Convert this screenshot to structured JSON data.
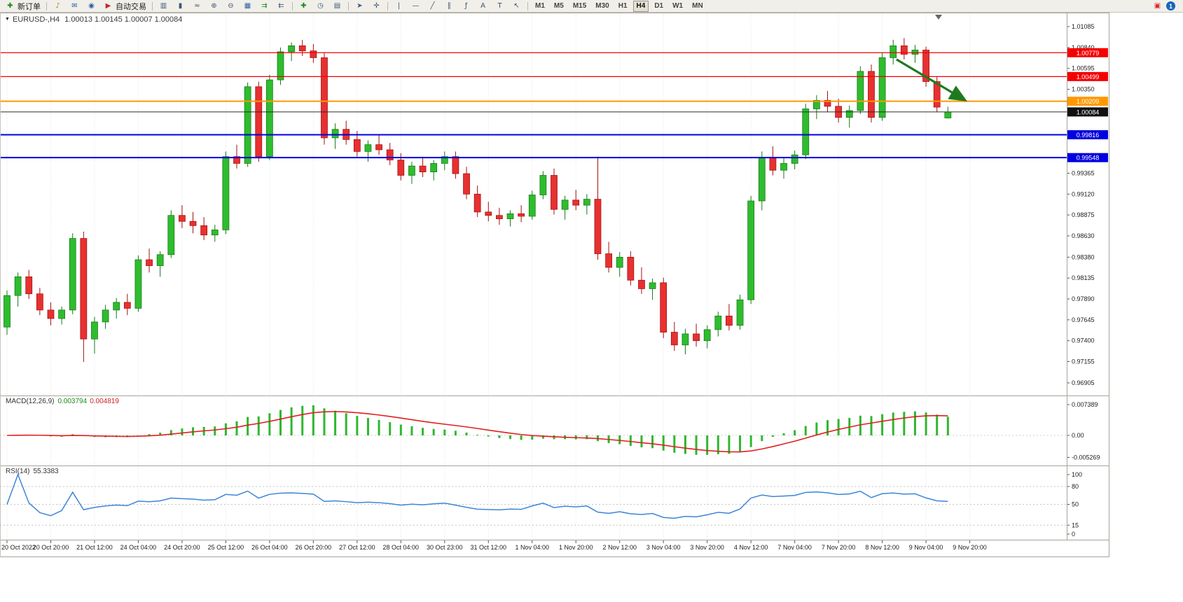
{
  "toolbar": {
    "items": [
      {
        "type": "button",
        "name": "new-order",
        "label": "新订单"
      },
      {
        "type": "sep"
      },
      {
        "type": "icon",
        "name": "signals"
      },
      {
        "type": "icon",
        "name": "mailbox"
      },
      {
        "type": "icon",
        "name": "virtual-hosting"
      },
      {
        "type": "button",
        "name": "autotrading",
        "label": "自动交易"
      },
      {
        "type": "sep"
      },
      {
        "type": "icon",
        "name": "bar-chart"
      },
      {
        "type": "icon",
        "name": "candlestick-chart"
      },
      {
        "type": "icon",
        "name": "line-chart"
      },
      {
        "type": "icon",
        "name": "zoom-in"
      },
      {
        "type": "icon",
        "name": "zoom-out"
      },
      {
        "type": "icon",
        "name": "tile-windows"
      },
      {
        "type": "icon",
        "name": "auto-scroll"
      },
      {
        "type": "icon",
        "name": "chart-shift"
      },
      {
        "type": "sep"
      },
      {
        "type": "icon",
        "name": "indicators"
      },
      {
        "type": "icon",
        "name": "time-periods"
      },
      {
        "type": "icon",
        "name": "templates"
      },
      {
        "type": "sep"
      },
      {
        "type": "icon",
        "name": "cursor"
      },
      {
        "type": "icon",
        "name": "crosshair"
      },
      {
        "type": "sep"
      },
      {
        "type": "icon",
        "name": "vertical-line"
      },
      {
        "type": "icon",
        "name": "horizontal-line"
      },
      {
        "type": "icon",
        "name": "trendline"
      },
      {
        "type": "icon",
        "name": "channel"
      },
      {
        "type": "icon",
        "name": "fibonacci"
      },
      {
        "type": "icon",
        "name": "text"
      },
      {
        "type": "icon",
        "name": "text-label"
      },
      {
        "type": "icon",
        "name": "arrow-tools"
      },
      {
        "type": "sep"
      }
    ],
    "timeframes": {
      "items": [
        "M1",
        "M5",
        "M15",
        "M30",
        "H1",
        "H4",
        "D1",
        "W1",
        "MN"
      ],
      "active": "H4"
    },
    "right": {
      "notification_count": "1"
    }
  },
  "chart": {
    "title_symbol": "EURUSD-,H4",
    "title_ohlc": "1.00013 1.00145 1.00007 1.00084",
    "price_axis": {
      "ticks": [
        "1.01085",
        "1.00840",
        "1.00595",
        "1.00350",
        "0.99365",
        "0.99120",
        "0.98875",
        "0.98630",
        "0.98380",
        "0.98135",
        "0.97890",
        "0.97645",
        "0.97400",
        "0.97155",
        "0.96905"
      ]
    },
    "hlines": [
      {
        "price": 1.00779,
        "label": "1.00779",
        "color": "#f50000",
        "width": 1.2
      },
      {
        "price": 1.00499,
        "label": "1.00499",
        "color": "#f50000",
        "width": 1.2
      },
      {
        "price": 1.00209,
        "label": "1.00209",
        "color": "#ff9800",
        "width": 2
      },
      {
        "price": 0.99816,
        "label": "0.99816",
        "color": "#0000e0",
        "width": 2
      },
      {
        "price": 0.99548,
        "label": "0.99548",
        "color": "#0000e0",
        "width": 2
      }
    ],
    "current_price": {
      "price": 1.00084,
      "label": "1.00084",
      "color": "#2b2b2b"
    },
    "arrow": {
      "from_index": 81.3,
      "from_price": 1.007,
      "to_index": 87.6,
      "to_price": 1.0022,
      "color": "#1f7a1f"
    },
    "time_axis": [
      "20 Oct 2022",
      "20 Oct 20:00",
      "21 Oct 12:00",
      "24 Oct 04:00",
      "24 Oct 20:00",
      "25 Oct 12:00",
      "26 Oct 04:00",
      "26 Oct 20:00",
      "27 Oct 12:00",
      "28 Oct 04:00",
      "30 Oct 23:00",
      "31 Oct 12:00",
      "1 Nov 04:00",
      "1 Nov 20:00",
      "2 Nov 12:00",
      "3 Nov 04:00",
      "3 Nov 20:00",
      "4 Nov 12:00",
      "7 Nov 04:00",
      "7 Nov 20:00",
      "8 Nov 12:00",
      "9 Nov 04:00",
      "9 Nov 20:00"
    ]
  },
  "chart_data": {
    "type": "candlestick",
    "symbol": "EURUSD-",
    "timeframe": "H4",
    "price_range": [
      0.96905,
      1.01085
    ],
    "ohlc": [
      [
        0.9756,
        0.9799,
        0.9747,
        0.9793
      ],
      [
        0.9793,
        0.982,
        0.978,
        0.9815
      ],
      [
        0.9815,
        0.9823,
        0.9789,
        0.9795
      ],
      [
        0.9795,
        0.9802,
        0.977,
        0.9776
      ],
      [
        0.9776,
        0.9785,
        0.9758,
        0.9766
      ],
      [
        0.9766,
        0.978,
        0.9759,
        0.9776
      ],
      [
        0.9776,
        0.9866,
        0.9771,
        0.986
      ],
      [
        0.986,
        0.9868,
        0.9715,
        0.9742
      ],
      [
        0.9742,
        0.9768,
        0.9725,
        0.9762
      ],
      [
        0.9762,
        0.9782,
        0.9754,
        0.9776
      ],
      [
        0.9776,
        0.979,
        0.9766,
        0.9785
      ],
      [
        0.9785,
        0.9795,
        0.977,
        0.9778
      ],
      [
        0.9778,
        0.984,
        0.9774,
        0.9835
      ],
      [
        0.9835,
        0.9848,
        0.982,
        0.9828
      ],
      [
        0.9828,
        0.9845,
        0.9815,
        0.9841
      ],
      [
        0.9841,
        0.9893,
        0.9837,
        0.9887
      ],
      [
        0.9887,
        0.9899,
        0.9872,
        0.988
      ],
      [
        0.988,
        0.9891,
        0.9866,
        0.9875
      ],
      [
        0.9875,
        0.9885,
        0.9858,
        0.9864
      ],
      [
        0.9864,
        0.9876,
        0.9856,
        0.987
      ],
      [
        0.987,
        0.9962,
        0.9865,
        0.9956
      ],
      [
        0.9956,
        0.997,
        0.9942,
        0.9948
      ],
      [
        0.9948,
        1.0043,
        0.9944,
        1.0038
      ],
      [
        1.0038,
        1.0044,
        0.995,
        0.9956
      ],
      [
        0.9956,
        1.0052,
        0.9952,
        1.0046
      ],
      [
        1.0046,
        1.0084,
        1.004,
        1.0079
      ],
      [
        1.0079,
        1.009,
        1.0068,
        1.0086
      ],
      [
        1.0086,
        1.0093,
        1.0074,
        1.008
      ],
      [
        1.008,
        1.0088,
        1.0066,
        1.0072
      ],
      [
        1.0072,
        1.0078,
        0.997,
        0.9978
      ],
      [
        0.9978,
        0.9995,
        0.9965,
        0.9988
      ],
      [
        0.9988,
        0.9998,
        0.997,
        0.9976
      ],
      [
        0.9976,
        0.9986,
        0.9956,
        0.9962
      ],
      [
        0.9962,
        0.9975,
        0.995,
        0.997
      ],
      [
        0.997,
        0.9982,
        0.9958,
        0.9964
      ],
      [
        0.9964,
        0.9972,
        0.9946,
        0.9952
      ],
      [
        0.9952,
        0.996,
        0.9928,
        0.9934
      ],
      [
        0.9934,
        0.995,
        0.9924,
        0.9945
      ],
      [
        0.9945,
        0.9956,
        0.9932,
        0.9938
      ],
      [
        0.9938,
        0.9952,
        0.9928,
        0.9948
      ],
      [
        0.9948,
        0.9962,
        0.994,
        0.9956
      ],
      [
        0.9956,
        0.9962,
        0.993,
        0.9936
      ],
      [
        0.9936,
        0.9944,
        0.9906,
        0.9912
      ],
      [
        0.9912,
        0.9922,
        0.9885,
        0.9891
      ],
      [
        0.9891,
        0.9903,
        0.988,
        0.9887
      ],
      [
        0.9887,
        0.9896,
        0.9876,
        0.9883
      ],
      [
        0.9883,
        0.9893,
        0.9874,
        0.9889
      ],
      [
        0.9889,
        0.9899,
        0.9879,
        0.9886
      ],
      [
        0.9886,
        0.9916,
        0.9882,
        0.9911
      ],
      [
        0.9911,
        0.9939,
        0.9906,
        0.9934
      ],
      [
        0.9934,
        0.9942,
        0.9888,
        0.9894
      ],
      [
        0.9894,
        0.991,
        0.9882,
        0.9905
      ],
      [
        0.9905,
        0.9917,
        0.9893,
        0.9899
      ],
      [
        0.9899,
        0.9912,
        0.9888,
        0.9906
      ],
      [
        0.9906,
        0.9956,
        0.9835,
        0.9842
      ],
      [
        0.9842,
        0.9856,
        0.982,
        0.9826
      ],
      [
        0.9826,
        0.9844,
        0.9815,
        0.9838
      ],
      [
        0.9838,
        0.9845,
        0.9805,
        0.9811
      ],
      [
        0.9811,
        0.9826,
        0.9795,
        0.9801
      ],
      [
        0.9801,
        0.9813,
        0.9788,
        0.9808
      ],
      [
        0.9808,
        0.9814,
        0.9743,
        0.975
      ],
      [
        0.975,
        0.9762,
        0.9728,
        0.9735
      ],
      [
        0.9735,
        0.9754,
        0.9724,
        0.9748
      ],
      [
        0.9748,
        0.976,
        0.9733,
        0.974
      ],
      [
        0.974,
        0.9758,
        0.9731,
        0.9753
      ],
      [
        0.9753,
        0.9774,
        0.9745,
        0.9769
      ],
      [
        0.9769,
        0.9783,
        0.9752,
        0.9758
      ],
      [
        0.9758,
        0.9794,
        0.9753,
        0.9788
      ],
      [
        0.9788,
        0.991,
        0.9783,
        0.9904
      ],
      [
        0.9904,
        0.9962,
        0.9893,
        0.9955
      ],
      [
        0.9955,
        0.9968,
        0.9934,
        0.994
      ],
      [
        0.994,
        0.9954,
        0.993,
        0.9948
      ],
      [
        0.9948,
        0.9963,
        0.9941,
        0.9958
      ],
      [
        0.9958,
        1.0018,
        0.9953,
        1.0012
      ],
      [
        1.0012,
        1.0028,
        1.0,
        1.0022
      ],
      [
        1.0022,
        1.0033,
        1.0008,
        1.0015
      ],
      [
        1.0015,
        1.0024,
        0.9996,
        1.0002
      ],
      [
        1.0002,
        1.0016,
        0.999,
        1.001
      ],
      [
        1.001,
        1.0062,
        1.0006,
        1.0056
      ],
      [
        1.0056,
        1.0064,
        0.9996,
        1.0002
      ],
      [
        1.0002,
        1.0078,
        0.9998,
        1.0072
      ],
      [
        1.0072,
        1.0093,
        1.0064,
        1.0086
      ],
      [
        1.0086,
        1.0095,
        1.007,
        1.0076
      ],
      [
        1.0076,
        1.0087,
        1.0066,
        1.0081
      ],
      [
        1.0081,
        1.0085,
        1.0038,
        1.0044
      ],
      [
        1.0044,
        1.005,
        1.0008,
        1.0014
      ],
      [
        1.00013,
        1.00145,
        1.00007,
        1.00084
      ]
    ],
    "current_bar": {
      "open": 1.00013,
      "high": 1.00145,
      "low": 1.00007,
      "close": 1.00084
    }
  },
  "macd": {
    "title": "MACD(12,26,9)",
    "value_main": "0.003794",
    "value_signal": "0.004819",
    "axis": [
      "0.007389",
      "0.00",
      "-0.005269"
    ],
    "params": {
      "fast": 12,
      "slow": 26,
      "signal": 9
    }
  },
  "rsi": {
    "title": "RSI(14)",
    "value": "55.3383",
    "axis": [
      "100",
      "80",
      "50",
      "15",
      "0"
    ],
    "levels": [
      80,
      50,
      15
    ]
  }
}
